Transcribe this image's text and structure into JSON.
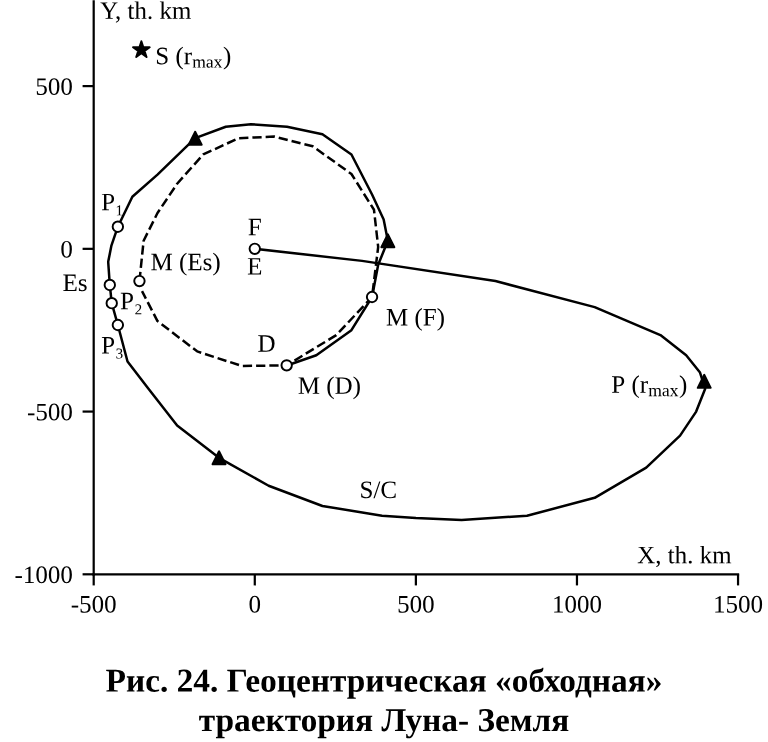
{
  "chart_data": {
    "type": "line",
    "title": "Рис. 24. Геоцентрическая «обходная»\nтраектория Луна- Земля",
    "xlabel": "X, th. km",
    "ylabel": "Y, th. km",
    "xlim": [
      -500,
      1500
    ],
    "ylim": [
      -1000,
      760
    ],
    "xticks": [
      -500,
      0,
      500,
      1000,
      1500
    ],
    "yticks": [
      -1000,
      -500,
      0,
      500
    ],
    "grid": false,
    "legend": false,
    "series": [
      {
        "name": "S/C",
        "color": "#000000",
        "line_style": "solid",
        "x": [
          0,
          333,
          747,
          1055,
          1259,
          1339,
          1382,
          1398,
          1370,
          1320,
          1215,
          1055,
          845,
          642,
          500,
          395,
          210,
          43,
          -111,
          -241,
          -333,
          -395,
          -425,
          -444,
          -450,
          -455,
          -445,
          -425,
          -380,
          -302,
          -185,
          -90,
          -12,
          100,
          210,
          300,
          364,
          400,
          413,
          383,
          364,
          300,
          191,
          110
        ],
        "values": [
          0,
          -37,
          -99,
          -179,
          -265,
          -327,
          -380,
          -430,
          -500,
          -574,
          -672,
          -765,
          -820,
          -833,
          -827,
          -820,
          -790,
          -728,
          -642,
          -543,
          -426,
          -346,
          -234,
          -167,
          -111,
          -40,
          10,
          68,
          160,
          228,
          340,
          375,
          383,
          375,
          352,
          290,
          167,
          90,
          25,
          -49,
          -148,
          -250,
          -327,
          -355
        ]
      },
      {
        "type": "line",
        "color": "#000000",
        "line_style": "dashed",
        "x": [
          -358,
          -345,
          -302,
          -241,
          -160,
          -50,
          60,
          180,
          300,
          370,
          383,
          364,
          253,
          99,
          -40,
          -179,
          -302,
          -350
        ],
        "values": [
          -99,
          25,
          110,
          200,
          290,
          340,
          345,
          315,
          230,
          120,
          6,
          -148,
          -265,
          -358,
          -360,
          -315,
          -222,
          -130
        ]
      },
      {
        "type": "scatter",
        "color": "#000000",
        "marker": "circle",
        "x": [
          0,
          -425,
          -450,
          -444,
          -425,
          -358,
          364,
          99
        ],
        "values": [
          0,
          68,
          -111,
          -167,
          -234,
          -99,
          -148,
          -358
        ]
      },
      {
        "type": "scatter",
        "color": "#000000",
        "marker": "triangle",
        "x": [
          -185,
          413,
          1395,
          -111
        ],
        "values": [
          340,
          25,
          -407,
          -642
        ]
      },
      {
        "type": "scatter",
        "color": "#000000",
        "marker": "star",
        "x": [
          -352
        ],
        "values": [
          611
        ]
      }
    ],
    "annotations": [
      {
        "text": "S (r$_{max}$)",
        "x": -352,
        "y": 611
      },
      {
        "text": "P (r$_{max}$)",
        "x": 1395,
        "y": -407
      },
      {
        "text": "F",
        "x": 0,
        "y": 0
      },
      {
        "text": "E",
        "x": 0,
        "y": 0
      },
      {
        "text": "P₁",
        "x": -425,
        "y": 68
      },
      {
        "text": "Es",
        "x": -450,
        "y": -111
      },
      {
        "text": "P₂",
        "x": -444,
        "y": -167
      },
      {
        "text": "P₃",
        "x": -425,
        "y": -234
      },
      {
        "text": "M (Es)",
        "x": -358,
        "y": -99
      },
      {
        "text": "M (F)",
        "x": 364,
        "y": -148
      },
      {
        "text": "M (D)",
        "x": 99,
        "y": -358
      },
      {
        "text": "D",
        "x": 99,
        "y": -358
      }
    ]
  }
}
